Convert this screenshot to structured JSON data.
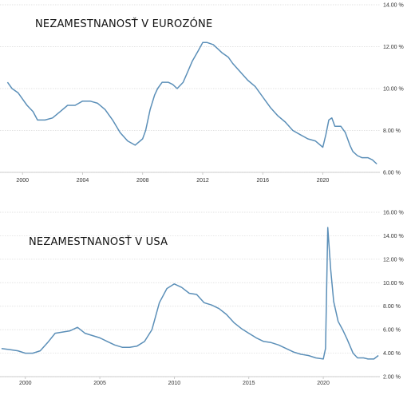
{
  "chart_data": [
    {
      "type": "line",
      "title": "NEZAMESTNANOSŤ V EUROZÓNE",
      "xlabel": "",
      "ylabel": "",
      "xlim": [
        1998.5,
        2023.8
      ],
      "ylim": [
        6,
        14
      ],
      "x_ticks": [
        2000,
        2004,
        2008,
        2012,
        2016,
        2020
      ],
      "y_ticks": [
        6,
        8,
        10,
        12,
        14
      ],
      "y_tick_labels": [
        "6.00 %",
        "8.00 %",
        "10.00 %",
        "12.00 %",
        "14.00 %"
      ],
      "grid": "horizontal",
      "legend": "none",
      "color": "#5b8fb8",
      "series": [
        {
          "x": [
            1999.0,
            1999.3,
            1999.7,
            2000.0,
            2000.3,
            2000.7,
            2001.0,
            2001.5,
            2002.0,
            2002.5,
            2003.0,
            2003.5,
            2004.0,
            2004.5,
            2005.0,
            2005.5,
            2006.0,
            2006.5,
            2007.0,
            2007.5,
            2008.0,
            2008.2,
            2008.5,
            2008.8,
            2009.0,
            2009.3,
            2009.7,
            2010.0,
            2010.3,
            2010.7,
            2011.0,
            2011.3,
            2011.7,
            2012.0,
            2012.3,
            2012.7,
            2013.0,
            2013.3,
            2013.7,
            2014.0,
            2014.5,
            2015.0,
            2015.5,
            2016.0,
            2016.5,
            2017.0,
            2017.5,
            2018.0,
            2018.5,
            2019.0,
            2019.5,
            2020.0,
            2020.2,
            2020.4,
            2020.6,
            2020.8,
            2021.0,
            2021.2,
            2021.5,
            2021.8,
            2022.0,
            2022.3,
            2022.6,
            2023.0,
            2023.3,
            2023.6
          ],
          "values": [
            10.3,
            10.0,
            9.8,
            9.5,
            9.2,
            8.9,
            8.5,
            8.5,
            8.6,
            8.9,
            9.2,
            9.2,
            9.4,
            9.4,
            9.3,
            9.0,
            8.5,
            7.9,
            7.5,
            7.3,
            7.6,
            8.0,
            9.0,
            9.7,
            10.0,
            10.3,
            10.3,
            10.2,
            10.0,
            10.3,
            10.8,
            11.3,
            11.8,
            12.2,
            12.2,
            12.1,
            11.9,
            11.7,
            11.5,
            11.2,
            10.8,
            10.4,
            10.1,
            9.6,
            9.1,
            8.7,
            8.4,
            8.0,
            7.8,
            7.6,
            7.5,
            7.2,
            7.8,
            8.5,
            8.6,
            8.2,
            8.2,
            8.2,
            7.9,
            7.3,
            7.0,
            6.8,
            6.7,
            6.7,
            6.6,
            6.4
          ]
        }
      ]
    },
    {
      "type": "line",
      "title": "NEZAMESTNANOSŤ V USA",
      "xlabel": "",
      "ylabel": "",
      "xlim": [
        1998.3,
        2023.8
      ],
      "ylim": [
        2,
        16
      ],
      "x_ticks": [
        2000,
        2005,
        2010,
        2015,
        2020
      ],
      "y_ticks": [
        2,
        4,
        6,
        8,
        10,
        12,
        14,
        16
      ],
      "y_tick_labels": [
        "2.00 %",
        "4.00 %",
        "6.00 %",
        "8.00 %",
        "10.00 %",
        "12.00 %",
        "14.00 %",
        "16.00 %"
      ],
      "grid": "horizontal",
      "legend": "none",
      "color": "#5b8fb8",
      "series": [
        {
          "x": [
            1998.4,
            1999.0,
            1999.5,
            2000.0,
            2000.5,
            2001.0,
            2001.5,
            2002.0,
            2002.5,
            2003.0,
            2003.5,
            2004.0,
            2004.5,
            2005.0,
            2005.5,
            2006.0,
            2006.5,
            2007.0,
            2007.5,
            2008.0,
            2008.5,
            2009.0,
            2009.5,
            2010.0,
            2010.5,
            2011.0,
            2011.5,
            2012.0,
            2012.5,
            2013.0,
            2013.5,
            2014.0,
            2014.5,
            2015.0,
            2015.5,
            2016.0,
            2016.5,
            2017.0,
            2017.5,
            2018.0,
            2018.5,
            2019.0,
            2019.5,
            2020.0,
            2020.15,
            2020.3,
            2020.5,
            2020.7,
            2021.0,
            2021.3,
            2021.6,
            2022.0,
            2022.3,
            2022.7,
            2023.0,
            2023.4,
            2023.7
          ],
          "values": [
            4.4,
            4.3,
            4.2,
            4.0,
            4.0,
            4.2,
            4.9,
            5.7,
            5.8,
            5.9,
            6.2,
            5.7,
            5.5,
            5.3,
            5.0,
            4.7,
            4.5,
            4.5,
            4.6,
            5.0,
            6.0,
            8.3,
            9.5,
            9.9,
            9.6,
            9.1,
            9.0,
            8.3,
            8.1,
            7.8,
            7.3,
            6.6,
            6.1,
            5.7,
            5.3,
            5.0,
            4.9,
            4.7,
            4.4,
            4.1,
            3.9,
            3.8,
            3.6,
            3.5,
            4.4,
            14.7,
            11.1,
            8.4,
            6.7,
            6.0,
            5.2,
            4.0,
            3.6,
            3.6,
            3.5,
            3.5,
            3.8
          ]
        }
      ]
    }
  ]
}
